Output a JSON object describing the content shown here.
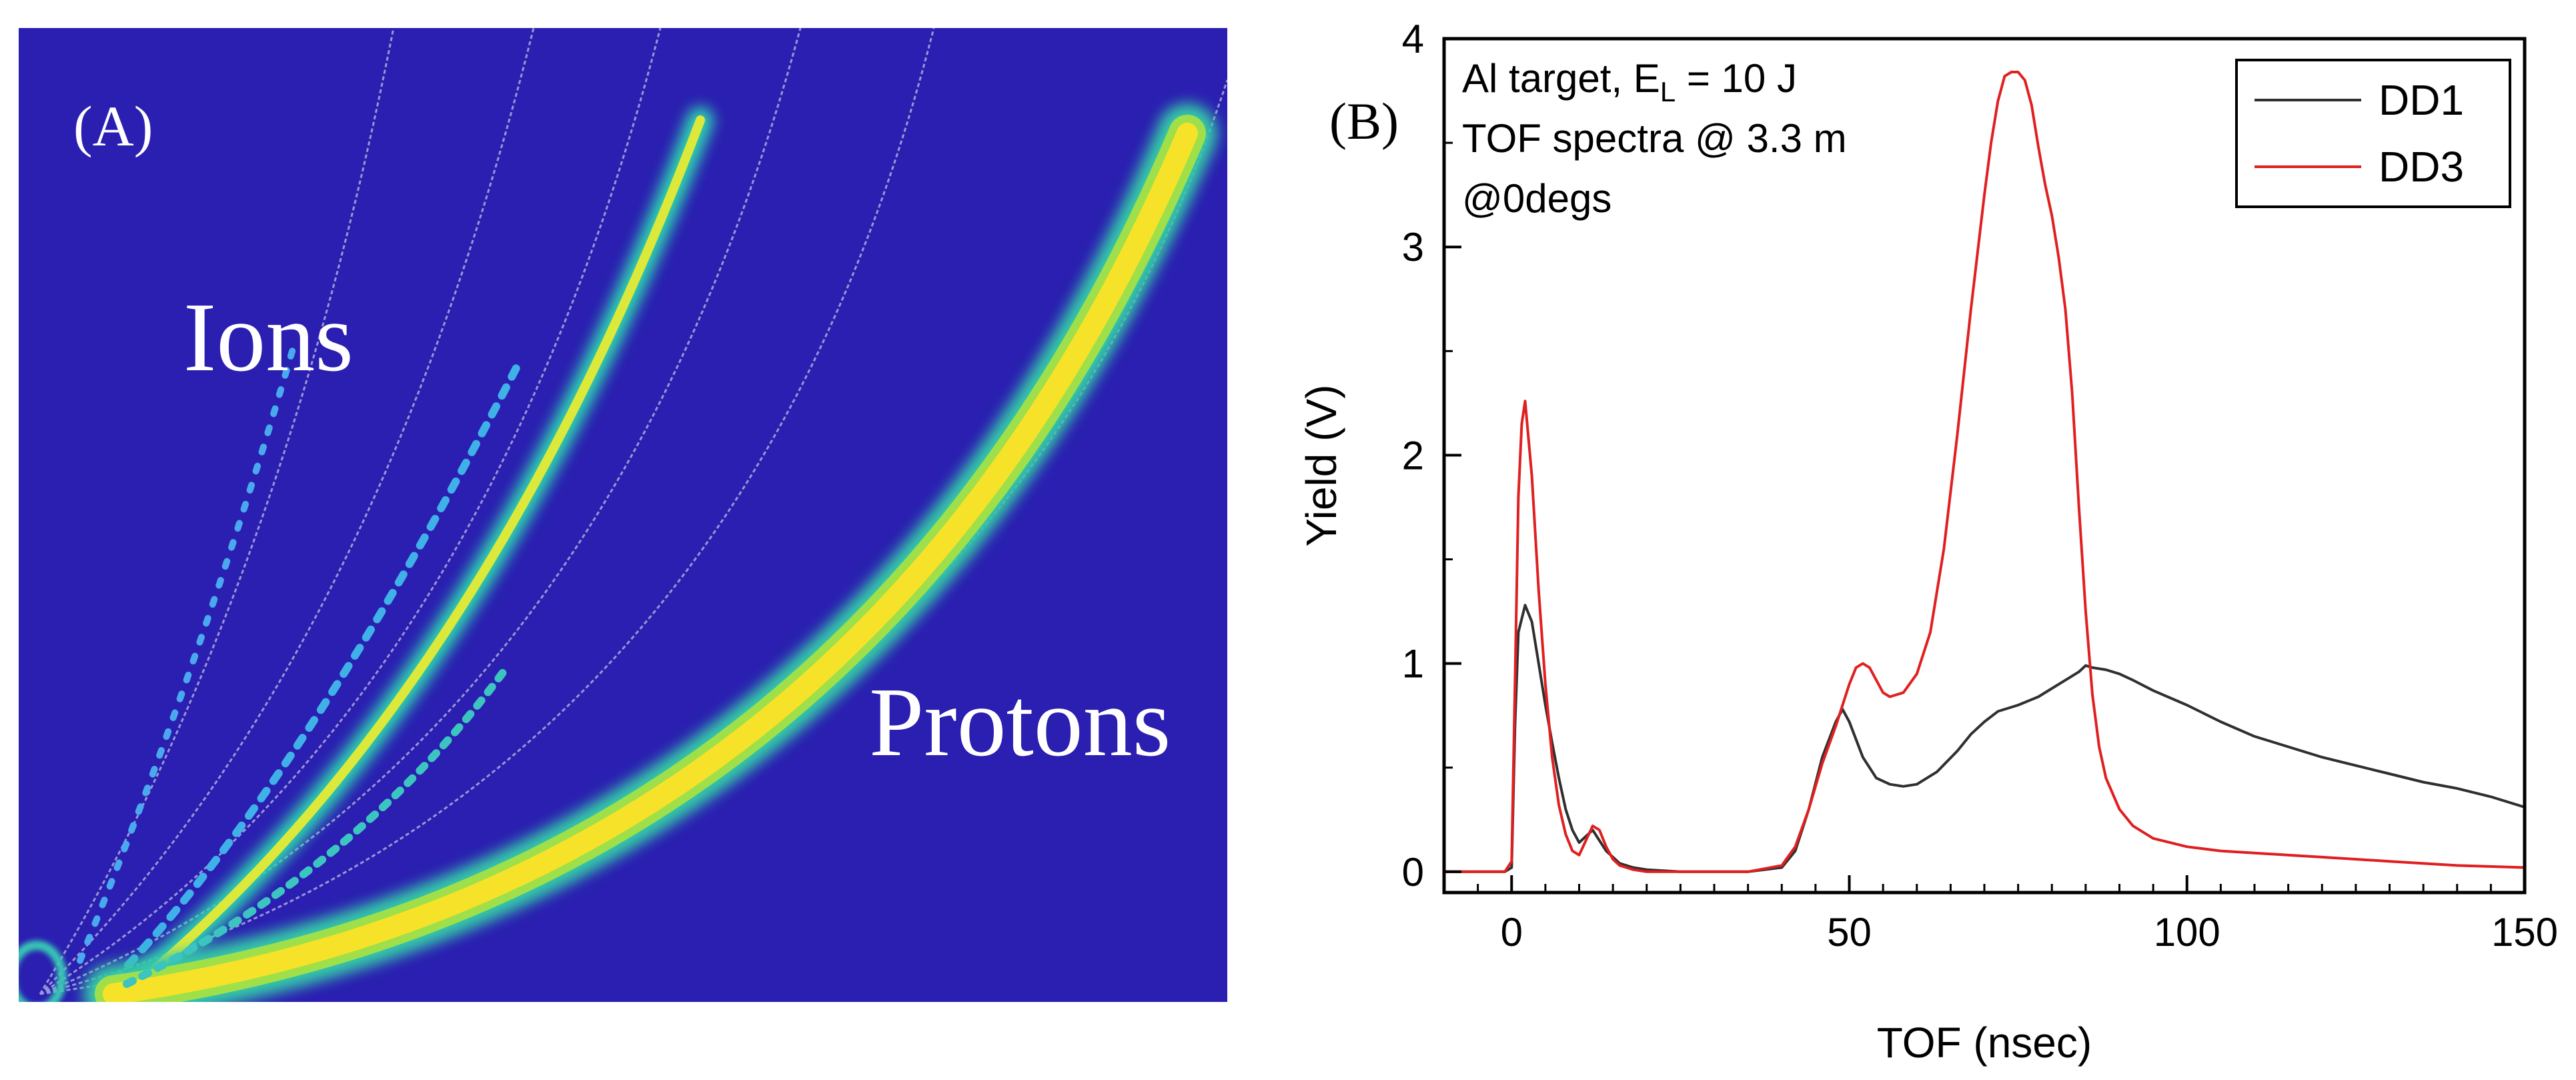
{
  "panel_a": {
    "label": "(A)",
    "ions_label": "Ions",
    "protons_label": "Protons",
    "background_color": "#2a1fb0"
  },
  "panel_b": {
    "label": "(B)",
    "annotation_line1_prefix": "Al target, E",
    "annotation_line1_sub": "L",
    "annotation_line1_suffix": " = 10 J",
    "annotation_line2": "TOF spectra @ 3.3 m",
    "annotation_line3": "@0degs"
  },
  "chart_data": {
    "type": "line",
    "title": "",
    "xlabel": "TOF (nsec)",
    "ylabel": "Yield (V)",
    "xlim": [
      -10,
      150
    ],
    "ylim": [
      -0.1,
      4
    ],
    "xticks": [
      0,
      50,
      100,
      150
    ],
    "yticks": [
      0,
      1,
      2,
      3,
      4
    ],
    "legend_position": "top-right",
    "series": [
      {
        "name": "DD1",
        "color": "#303030",
        "x": [
          -10,
          -1,
          0,
          0.5,
          1,
          2,
          3,
          4,
          5,
          6,
          7,
          8,
          9,
          10,
          11,
          12,
          13,
          14,
          15,
          16,
          18,
          20,
          25,
          30,
          35,
          40,
          42,
          44,
          46,
          48,
          49,
          50,
          52,
          54,
          56,
          58,
          60,
          63,
          66,
          68,
          70,
          72,
          75,
          78,
          80,
          82,
          84,
          85,
          86,
          88,
          90,
          92,
          95,
          100,
          105,
          110,
          115,
          120,
          125,
          130,
          135,
          140,
          145,
          150
        ],
        "y": [
          0,
          0,
          0.02,
          0.7,
          1.15,
          1.28,
          1.2,
          1.0,
          0.8,
          0.62,
          0.45,
          0.3,
          0.2,
          0.14,
          0.17,
          0.2,
          0.15,
          0.1,
          0.07,
          0.04,
          0.02,
          0.01,
          0,
          0,
          0,
          0.02,
          0.1,
          0.3,
          0.55,
          0.72,
          0.78,
          0.72,
          0.55,
          0.45,
          0.42,
          0.41,
          0.42,
          0.48,
          0.58,
          0.66,
          0.72,
          0.77,
          0.8,
          0.84,
          0.88,
          0.92,
          0.96,
          0.99,
          0.98,
          0.97,
          0.95,
          0.92,
          0.87,
          0.8,
          0.72,
          0.65,
          0.6,
          0.55,
          0.51,
          0.47,
          0.43,
          0.4,
          0.36,
          0.31
        ]
      },
      {
        "name": "DD3",
        "color": "#e02020",
        "x": [
          -10,
          -1,
          0,
          0.5,
          1,
          1.5,
          2,
          3,
          4,
          5,
          6,
          7,
          8,
          9,
          10,
          11,
          12,
          13,
          14,
          15,
          16,
          18,
          20,
          25,
          30,
          35,
          40,
          42,
          44,
          46,
          48,
          50,
          51,
          52,
          53,
          54,
          55,
          56,
          58,
          60,
          62,
          64,
          66,
          68,
          70,
          71,
          72,
          73,
          74,
          75,
          76,
          77,
          78,
          79,
          80,
          81,
          82,
          83,
          84,
          85,
          86,
          87,
          88,
          90,
          92,
          95,
          100,
          105,
          110,
          120,
          130,
          140,
          150
        ],
        "y": [
          0,
          0,
          0.05,
          0.9,
          1.8,
          2.15,
          2.26,
          1.9,
          1.35,
          0.9,
          0.55,
          0.32,
          0.18,
          0.1,
          0.08,
          0.15,
          0.22,
          0.2,
          0.12,
          0.06,
          0.03,
          0.01,
          0,
          0,
          0,
          0,
          0.03,
          0.12,
          0.3,
          0.52,
          0.7,
          0.9,
          0.98,
          1.0,
          0.98,
          0.92,
          0.86,
          0.84,
          0.86,
          0.95,
          1.15,
          1.55,
          2.1,
          2.7,
          3.25,
          3.5,
          3.7,
          3.82,
          3.84,
          3.84,
          3.8,
          3.68,
          3.48,
          3.3,
          3.15,
          2.95,
          2.7,
          2.3,
          1.75,
          1.25,
          0.85,
          0.6,
          0.45,
          0.3,
          0.22,
          0.16,
          0.12,
          0.1,
          0.09,
          0.07,
          0.05,
          0.03,
          0.02
        ]
      }
    ]
  }
}
